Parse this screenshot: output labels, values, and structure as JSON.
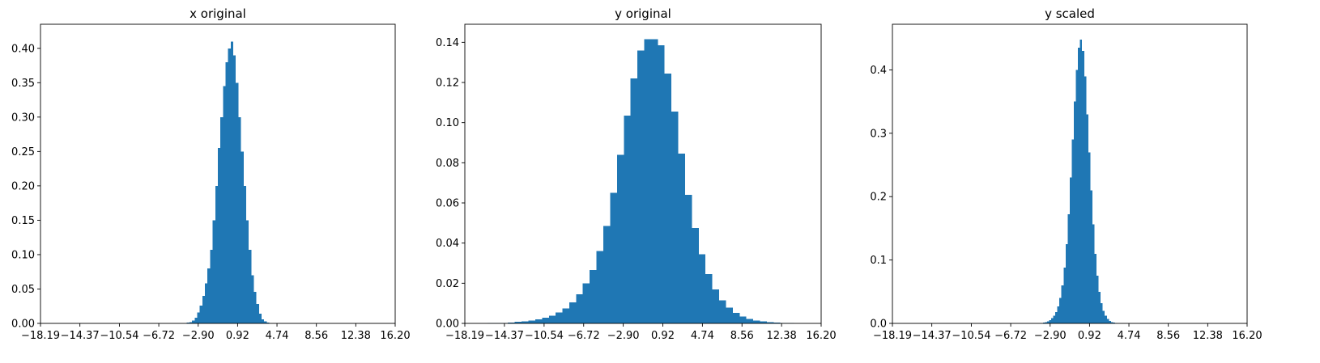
{
  "chart_data": [
    {
      "type": "histogram",
      "title": "x original",
      "xlim": [
        -18.19,
        16.2
      ],
      "ylim": [
        0,
        0.435
      ],
      "xticks": [
        -18.19,
        -14.37,
        -10.54,
        -6.72,
        -2.9,
        0.92,
        4.74,
        8.56,
        12.38,
        16.2
      ],
      "xtick_labels": [
        "−18.19",
        "−14.37",
        "−10.54",
        "−6.72",
        "−2.90",
        "0.92",
        "4.74",
        "8.56",
        "12.38",
        "16.20"
      ],
      "yticks": [
        0.0,
        0.05,
        0.1,
        0.15,
        0.2,
        0.25,
        0.3,
        0.35,
        0.4
      ],
      "ytick_labels": [
        "0.00",
        "0.05",
        "0.10",
        "0.15",
        "0.20",
        "0.25",
        "0.30",
        "0.35",
        "0.40"
      ],
      "bin_edges": [
        -4.0,
        -3.75,
        -3.5,
        -3.25,
        -3.0,
        -2.75,
        -2.5,
        -2.25,
        -2.0,
        -1.75,
        -1.5,
        -1.25,
        -1.0,
        -0.75,
        -0.5,
        -0.25,
        0.0,
        0.25,
        0.5,
        0.75,
        1.0,
        1.25,
        1.5,
        1.75,
        2.0,
        2.25,
        2.5,
        2.75,
        3.0,
        3.25,
        3.5,
        3.75,
        4.0
      ],
      "values": [
        0.001,
        0.002,
        0.004,
        0.008,
        0.016,
        0.026,
        0.04,
        0.058,
        0.08,
        0.107,
        0.15,
        0.2,
        0.255,
        0.3,
        0.345,
        0.38,
        0.4,
        0.41,
        0.39,
        0.35,
        0.3,
        0.25,
        0.2,
        0.15,
        0.107,
        0.07,
        0.046,
        0.028,
        0.014,
        0.006,
        0.003,
        0.001
      ]
    },
    {
      "type": "histogram",
      "title": "y original",
      "xlim": [
        -18.19,
        16.2
      ],
      "ylim": [
        0,
        0.149
      ],
      "xticks": [
        -18.19,
        -14.37,
        -10.54,
        -6.72,
        -2.9,
        0.92,
        4.74,
        8.56,
        12.38,
        16.2
      ],
      "xtick_labels": [
        "−18.19",
        "−14.37",
        "−10.54",
        "−6.72",
        "−2.90",
        "0.92",
        "4.74",
        "8.56",
        "12.38",
        "16.20"
      ],
      "yticks": [
        0.0,
        0.02,
        0.04,
        0.06,
        0.08,
        0.1,
        0.12,
        0.14
      ],
      "ytick_labels": [
        "0.00",
        "0.02",
        "0.04",
        "0.06",
        "0.08",
        "0.10",
        "0.12",
        "0.14"
      ],
      "bin_edges": [
        -16.0,
        -15.34,
        -14.69,
        -14.03,
        -13.37,
        -12.71,
        -12.06,
        -11.4,
        -10.74,
        -10.08,
        -9.43,
        -8.77,
        -8.11,
        -7.45,
        -6.8,
        -6.14,
        -5.48,
        -4.82,
        -4.17,
        -3.51,
        -2.85,
        -2.19,
        -1.54,
        -0.88,
        -0.22,
        0.44,
        1.09,
        1.75,
        2.41,
        3.07,
        3.72,
        4.38,
        5.04,
        5.7,
        6.35,
        7.01,
        7.67,
        8.33,
        8.98,
        9.64,
        10.3,
        10.96,
        11.61,
        12.27,
        12.93,
        13.59,
        14.24,
        14.9
      ],
      "values": [
        0.0002,
        0.0002,
        0.0003,
        0.0005,
        0.0008,
        0.001,
        0.0015,
        0.002,
        0.0028,
        0.0039,
        0.0055,
        0.0075,
        0.0105,
        0.0145,
        0.02,
        0.0265,
        0.036,
        0.0485,
        0.065,
        0.084,
        0.1035,
        0.122,
        0.136,
        0.1415,
        0.1415,
        0.1385,
        0.1245,
        0.1055,
        0.0845,
        0.064,
        0.0475,
        0.0345,
        0.0245,
        0.017,
        0.0115,
        0.0078,
        0.0052,
        0.0035,
        0.0023,
        0.0015,
        0.001,
        0.0006,
        0.0004,
        0.0003,
        0.0002,
        0.0001,
        0.0001
      ]
    },
    {
      "type": "histogram",
      "title": "y scaled",
      "xlim": [
        -18.19,
        16.2
      ],
      "ylim": [
        0,
        0.472
      ],
      "xticks": [
        -18.19,
        -14.37,
        -10.54,
        -6.72,
        -2.9,
        0.92,
        4.74,
        8.56,
        12.38,
        16.2
      ],
      "xtick_labels": [
        "−18.19",
        "−14.37",
        "−10.54",
        "−6.72",
        "−2.90",
        "0.92",
        "4.74",
        "8.56",
        "12.38",
        "16.20"
      ],
      "yticks": [
        0.0,
        0.1,
        0.2,
        0.3,
        0.4
      ],
      "ytick_labels": [
        "0.0",
        "0.1",
        "0.2",
        "0.3",
        "0.4"
      ],
      "bin_edges": [
        -3.6,
        -3.4,
        -3.2,
        -3.0,
        -2.8,
        -2.6,
        -2.4,
        -2.2,
        -2.0,
        -1.8,
        -1.6,
        -1.4,
        -1.2,
        -1.0,
        -0.8,
        -0.6,
        -0.4,
        -0.2,
        0.0,
        0.2,
        0.4,
        0.6,
        0.8,
        1.0,
        1.2,
        1.4,
        1.6,
        1.8,
        2.0,
        2.2,
        2.4,
        2.6,
        2.8,
        3.0,
        3.2,
        3.4,
        3.6
      ],
      "values": [
        0.001,
        0.002,
        0.003,
        0.005,
        0.008,
        0.012,
        0.018,
        0.027,
        0.04,
        0.06,
        0.088,
        0.125,
        0.172,
        0.23,
        0.29,
        0.35,
        0.4,
        0.435,
        0.448,
        0.43,
        0.39,
        0.33,
        0.27,
        0.21,
        0.156,
        0.11,
        0.075,
        0.05,
        0.032,
        0.02,
        0.012,
        0.007,
        0.004,
        0.002,
        0.001,
        0.0005
      ]
    }
  ],
  "colors": {
    "bar": "#1f77b4",
    "axis": "#000000",
    "background": "#ffffff"
  }
}
